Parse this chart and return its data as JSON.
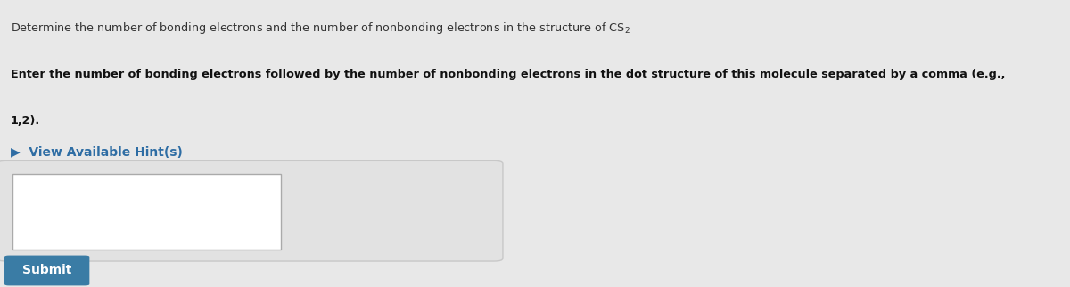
{
  "bg_color": "#e8e8e8",
  "line1": "Determine the number of bonding electrons and the number of nonbonding electrons in the structure of CS$_2$",
  "line2": "Enter the number of bonding electrons followed by the number of nonbonding electrons in the dot structure of this molecule separated by a comma (e.g.,",
  "line3": "1,2).",
  "hint_text": "▶  View Available Hint(s)",
  "submit_text": "Submit",
  "submit_bg": "#3a7ca5",
  "submit_text_color": "#ffffff",
  "hint_color": "#2e6da4",
  "text_color": "#333333",
  "bold_color": "#111111",
  "input_box_color": "#ffffff",
  "outer_box_border": "#c8c8c8",
  "outer_box_face": "#e2e2e2",
  "inner_box_border": "#aaaaaa"
}
